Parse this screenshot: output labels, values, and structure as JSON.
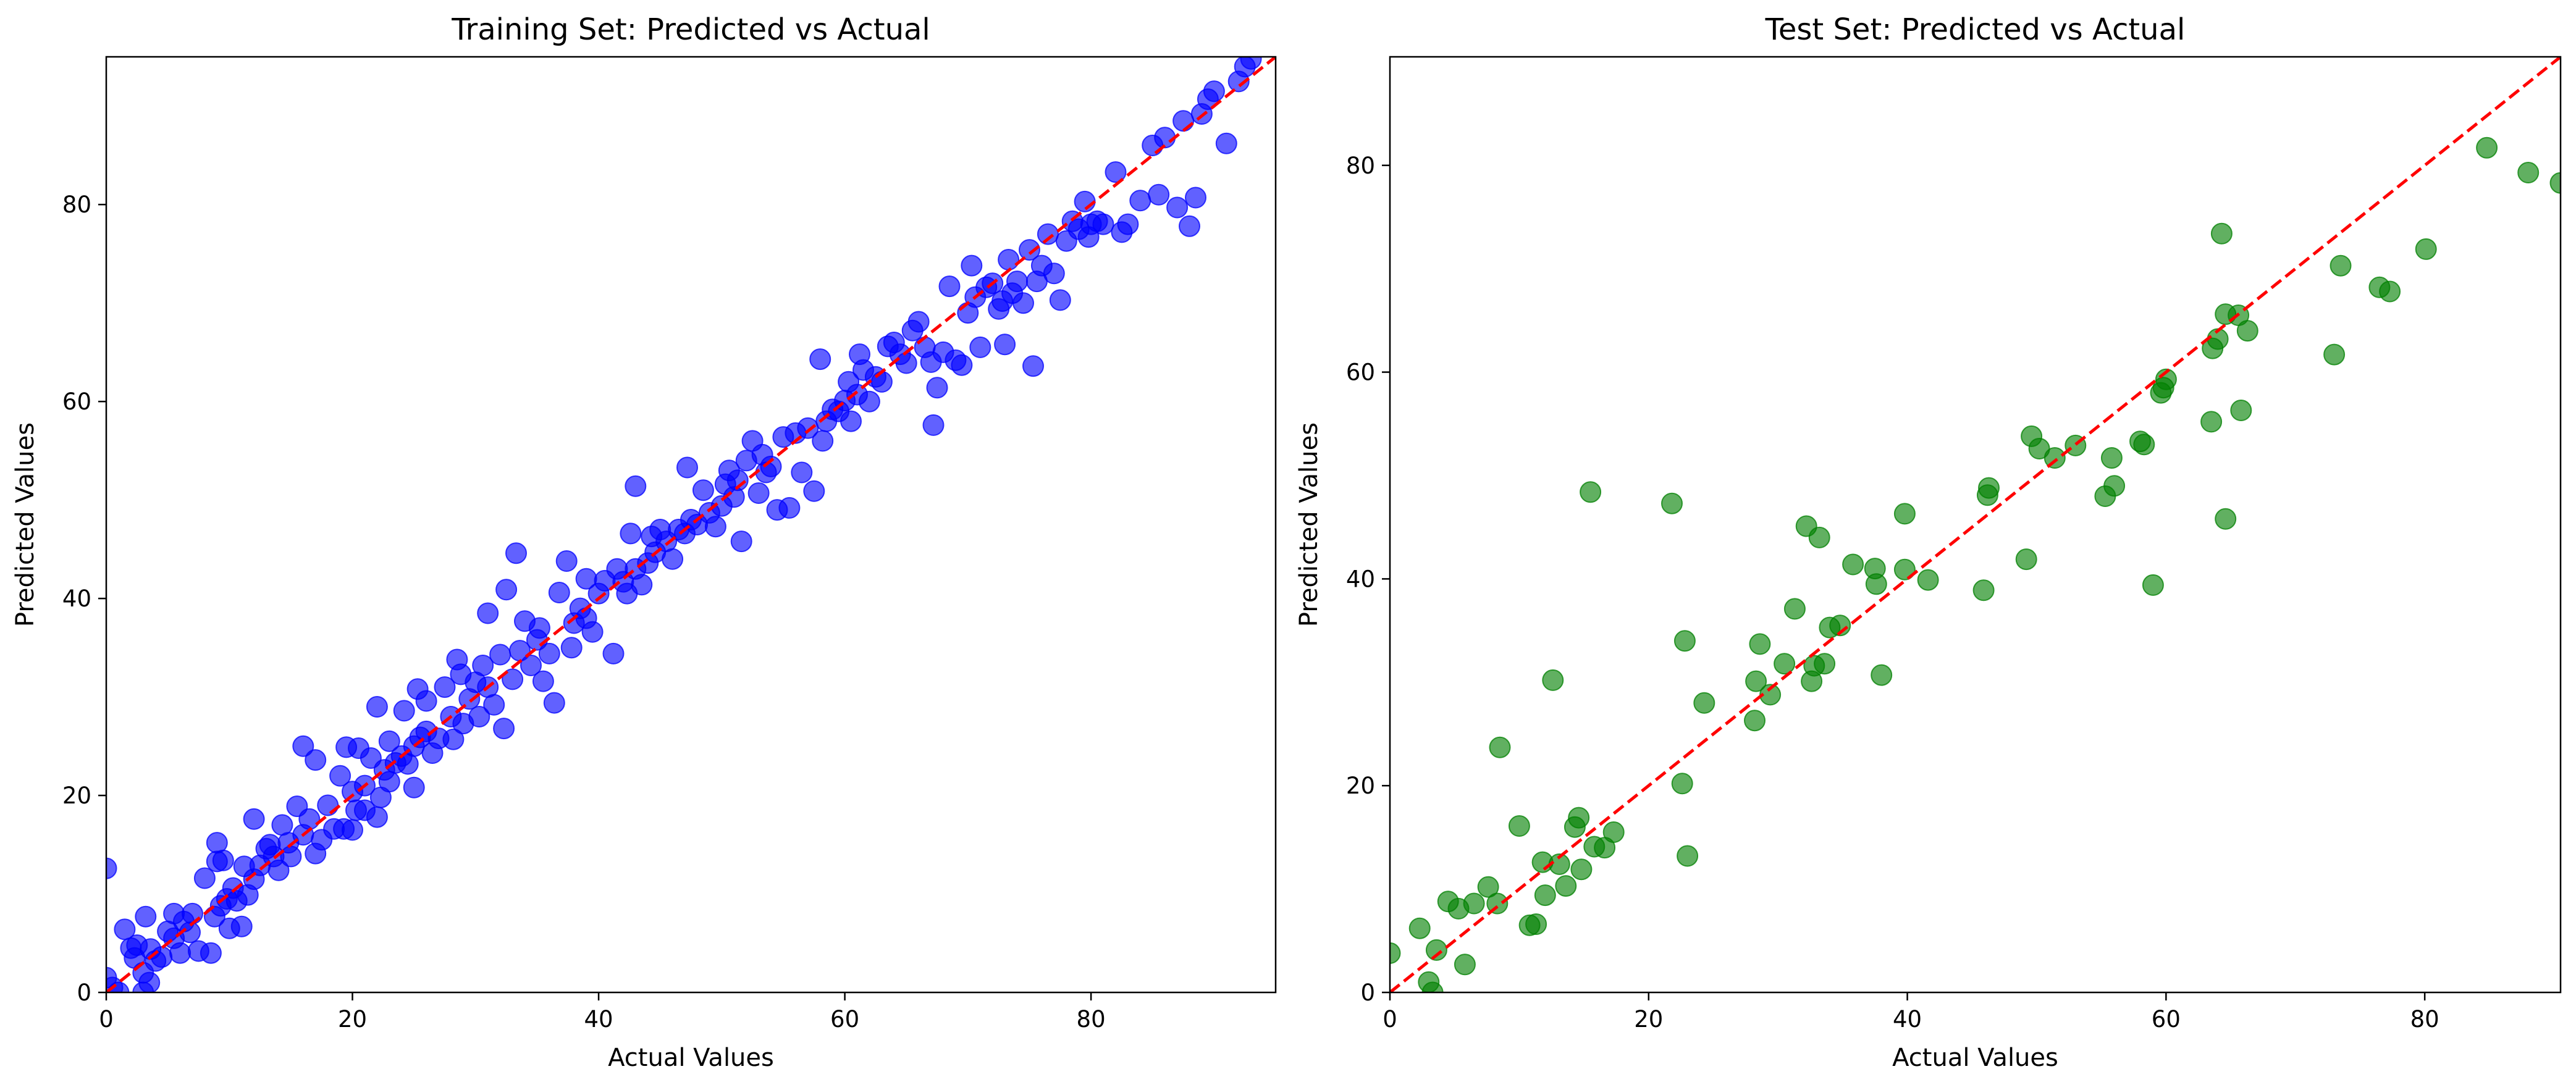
{
  "chart_data": [
    {
      "type": "scatter",
      "title": "Training Set: Predicted vs Actual",
      "xlabel": "Actual Values",
      "ylabel": "Predicted Values",
      "xlim": [
        0,
        95
      ],
      "ylim": [
        0,
        95
      ],
      "xticks": [
        0,
        20,
        40,
        60,
        80
      ],
      "yticks": [
        0,
        20,
        40,
        60,
        80
      ],
      "grid": false,
      "point_color": "#0000ff",
      "reference_line": {
        "from": [
          0,
          0
        ],
        "to": [
          95,
          95
        ],
        "color": "#ff0000",
        "style": "dashed"
      },
      "points": [
        [
          0,
          12.6
        ],
        [
          0,
          1.5
        ],
        [
          0.5,
          0.5
        ],
        [
          1,
          0
        ],
        [
          1.5,
          6.4
        ],
        [
          2,
          4.5
        ],
        [
          2.3,
          3.5
        ],
        [
          2.5,
          4.8
        ],
        [
          3,
          0
        ],
        [
          3,
          2
        ],
        [
          3.2,
          7.7
        ],
        [
          3.5,
          1
        ],
        [
          3.6,
          4.4
        ],
        [
          4,
          3.2
        ],
        [
          4.5,
          3.6
        ],
        [
          5,
          6.2
        ],
        [
          5.5,
          5.5
        ],
        [
          5.5,
          8
        ],
        [
          6,
          4
        ],
        [
          6.3,
          7.2
        ],
        [
          6.8,
          6.1
        ],
        [
          7,
          8
        ],
        [
          7.5,
          4.2
        ],
        [
          8,
          11.6
        ],
        [
          8.5,
          4
        ],
        [
          8.8,
          7.7
        ],
        [
          9,
          15.2
        ],
        [
          9,
          13.3
        ],
        [
          9.3,
          8.8
        ],
        [
          9.5,
          13.4
        ],
        [
          9.8,
          9.5
        ],
        [
          10,
          6.5
        ],
        [
          10.3,
          10.6
        ],
        [
          10.6,
          9.3
        ],
        [
          11,
          6.7
        ],
        [
          11.2,
          12.8
        ],
        [
          11.5,
          9.9
        ],
        [
          12,
          17.6
        ],
        [
          12,
          11.5
        ],
        [
          12.5,
          12.9
        ],
        [
          13,
          14.6
        ],
        [
          13.3,
          15
        ],
        [
          13.6,
          13.8
        ],
        [
          14,
          12.4
        ],
        [
          14.3,
          17
        ],
        [
          14.8,
          15.2
        ],
        [
          15,
          13.8
        ],
        [
          15.5,
          18.9
        ],
        [
          16,
          16
        ],
        [
          16,
          25
        ],
        [
          16.5,
          17.6
        ],
        [
          17,
          14.1
        ],
        [
          17,
          23.6
        ],
        [
          17.5,
          15.5
        ],
        [
          18,
          19
        ],
        [
          18.5,
          16.6
        ],
        [
          19,
          22
        ],
        [
          19.3,
          16.6
        ],
        [
          19.5,
          24.9
        ],
        [
          20,
          16.5
        ],
        [
          20,
          20.4
        ],
        [
          20.3,
          18.5
        ],
        [
          20.5,
          24.8
        ],
        [
          21,
          21
        ],
        [
          21,
          18.5
        ],
        [
          21.5,
          23.8
        ],
        [
          22,
          17.8
        ],
        [
          22,
          29
        ],
        [
          22.3,
          19.8
        ],
        [
          22.6,
          22.6
        ],
        [
          23,
          21.4
        ],
        [
          23,
          25.5
        ],
        [
          23.5,
          23.3
        ],
        [
          24,
          24
        ],
        [
          24.2,
          28.6
        ],
        [
          24.5,
          23.2
        ],
        [
          25,
          20.8
        ],
        [
          25,
          25
        ],
        [
          25.3,
          30.8
        ],
        [
          25.5,
          25.9
        ],
        [
          26,
          26.5
        ],
        [
          26,
          29.6
        ],
        [
          26.5,
          24.3
        ],
        [
          27,
          25.8
        ],
        [
          27.5,
          31
        ],
        [
          28,
          28
        ],
        [
          28.2,
          25.7
        ],
        [
          28.5,
          33.8
        ],
        [
          28.8,
          32.3
        ],
        [
          29,
          27.3
        ],
        [
          29.5,
          29.8
        ],
        [
          30,
          31.5
        ],
        [
          30.3,
          28
        ],
        [
          30.6,
          33.2
        ],
        [
          31,
          31
        ],
        [
          31,
          38.5
        ],
        [
          31.5,
          29.2
        ],
        [
          32,
          34.3
        ],
        [
          32.3,
          26.8
        ],
        [
          32.5,
          40.9
        ],
        [
          33,
          31.8
        ],
        [
          33.3,
          44.6
        ],
        [
          33.6,
          34.7
        ],
        [
          34,
          37.7
        ],
        [
          34.5,
          33.2
        ],
        [
          35,
          35.8
        ],
        [
          35.2,
          37
        ],
        [
          35.5,
          31.6
        ],
        [
          36,
          34.4
        ],
        [
          36.4,
          29.4
        ],
        [
          36.8,
          40.6
        ],
        [
          37.4,
          43.8
        ],
        [
          37.8,
          35
        ],
        [
          38,
          37.5
        ],
        [
          38.5,
          39
        ],
        [
          39,
          38
        ],
        [
          39,
          42
        ],
        [
          39.5,
          36.6
        ],
        [
          40,
          40.5
        ],
        [
          40.5,
          41.8
        ],
        [
          41.2,
          34.4
        ],
        [
          41.5,
          43
        ],
        [
          42,
          41.7
        ],
        [
          42.3,
          40.5
        ],
        [
          42.6,
          46.6
        ],
        [
          43,
          51.4
        ],
        [
          43,
          43
        ],
        [
          43.5,
          41.4
        ],
        [
          44,
          43.6
        ],
        [
          44.3,
          46.3
        ],
        [
          44.6,
          44.7
        ],
        [
          45,
          47
        ],
        [
          45.5,
          45.8
        ],
        [
          46,
          44
        ],
        [
          46.5,
          47
        ],
        [
          47,
          46.6
        ],
        [
          47.2,
          53.3
        ],
        [
          47.5,
          48
        ],
        [
          48,
          47.5
        ],
        [
          48.5,
          51
        ],
        [
          49,
          48.7
        ],
        [
          49.5,
          47.3
        ],
        [
          50,
          49.4
        ],
        [
          50.3,
          51.6
        ],
        [
          50.6,
          53
        ],
        [
          51,
          50.3
        ],
        [
          51.3,
          52
        ],
        [
          51.6,
          45.8
        ],
        [
          52,
          54
        ],
        [
          52.5,
          56
        ],
        [
          53,
          50.7
        ],
        [
          53.3,
          54.6
        ],
        [
          53.6,
          52.8
        ],
        [
          54,
          53.4
        ],
        [
          54.5,
          49
        ],
        [
          55,
          56.4
        ],
        [
          55.5,
          49.2
        ],
        [
          56,
          56.8
        ],
        [
          56.5,
          52.8
        ],
        [
          57,
          57.3
        ],
        [
          57.5,
          50.9
        ],
        [
          58,
          64.3
        ],
        [
          58.2,
          56
        ],
        [
          58.5,
          58
        ],
        [
          59,
          59.2
        ],
        [
          59.5,
          59
        ],
        [
          60,
          60.1
        ],
        [
          60.3,
          62
        ],
        [
          60.5,
          58
        ],
        [
          61,
          60.7
        ],
        [
          61.2,
          64.8
        ],
        [
          61.5,
          63.2
        ],
        [
          62,
          60
        ],
        [
          62.5,
          62.5
        ],
        [
          63,
          62
        ],
        [
          63.5,
          65.6
        ],
        [
          64,
          66
        ],
        [
          64.5,
          64.8
        ],
        [
          65,
          63.9
        ],
        [
          65.5,
          67.2
        ],
        [
          66,
          68.1
        ],
        [
          66.5,
          65.5
        ],
        [
          67,
          64
        ],
        [
          67.2,
          57.6
        ],
        [
          67.5,
          61.4
        ],
        [
          68,
          65
        ],
        [
          68.5,
          71.7
        ],
        [
          69,
          64.2
        ],
        [
          69.5,
          63.7
        ],
        [
          70,
          69
        ],
        [
          70.3,
          73.8
        ],
        [
          70.6,
          70.6
        ],
        [
          71,
          65.5
        ],
        [
          71.5,
          71.6
        ],
        [
          72,
          72
        ],
        [
          72.5,
          69.4
        ],
        [
          72.8,
          70.2
        ],
        [
          73,
          65.8
        ],
        [
          73.3,
          74.4
        ],
        [
          73.6,
          71
        ],
        [
          74,
          72.2
        ],
        [
          74.5,
          70
        ],
        [
          75,
          75.4
        ],
        [
          75.3,
          63.6
        ],
        [
          75.6,
          72.2
        ],
        [
          76,
          73.8
        ],
        [
          76.5,
          77
        ],
        [
          77,
          73
        ],
        [
          77.5,
          70.3
        ],
        [
          78,
          76.3
        ],
        [
          78.5,
          78.3
        ],
        [
          79,
          77.5
        ],
        [
          79.5,
          80.3
        ],
        [
          79.8,
          76.7
        ],
        [
          80,
          78
        ],
        [
          80.5,
          78.3
        ],
        [
          81,
          78
        ],
        [
          82,
          83.3
        ],
        [
          82.5,
          77.2
        ],
        [
          83,
          78
        ],
        [
          84,
          80.4
        ],
        [
          85,
          86
        ],
        [
          85.5,
          81
        ],
        [
          86,
          86.8
        ],
        [
          87,
          79.7
        ],
        [
          87.5,
          88.5
        ],
        [
          88,
          77.8
        ],
        [
          88.5,
          80.7
        ],
        [
          89,
          89.2
        ],
        [
          89.5,
          90.7
        ],
        [
          90,
          91.5
        ],
        [
          91,
          86.2
        ],
        [
          92,
          92.5
        ],
        [
          92.5,
          94
        ],
        [
          93,
          94.8
        ]
      ]
    },
    {
      "type": "scatter",
      "title": "Test Set: Predicted vs Actual",
      "xlabel": "Actual Values",
      "ylabel": "Predicted Values",
      "xlim": [
        0,
        90.5
      ],
      "ylim": [
        0,
        90.5
      ],
      "xticks": [
        0,
        20,
        40,
        60,
        80
      ],
      "yticks": [
        0,
        20,
        40,
        60,
        80
      ],
      "grid": false,
      "point_color": "#008000",
      "reference_line": {
        "from": [
          0,
          0
        ],
        "to": [
          90.5,
          90.5
        ],
        "color": "#ff0000",
        "style": "dashed"
      },
      "points": [
        [
          0,
          3.8
        ],
        [
          2.3,
          6.2
        ],
        [
          3,
          1
        ],
        [
          3.3,
          0
        ],
        [
          3.6,
          4.1
        ],
        [
          4.5,
          8.8
        ],
        [
          5.3,
          8.1
        ],
        [
          5.8,
          2.7
        ],
        [
          6.5,
          8.6
        ],
        [
          7.6,
          10.2
        ],
        [
          8.3,
          8.6
        ],
        [
          8.5,
          23.7
        ],
        [
          10,
          16.1
        ],
        [
          10.8,
          6.5
        ],
        [
          11.3,
          6.6
        ],
        [
          11.8,
          12.6
        ],
        [
          12,
          9.4
        ],
        [
          12.6,
          30.2
        ],
        [
          13.1,
          12.4
        ],
        [
          13.6,
          10.3
        ],
        [
          14.3,
          16
        ],
        [
          14.6,
          16.9
        ],
        [
          14.8,
          11.9
        ],
        [
          15.5,
          48.4
        ],
        [
          15.8,
          14.1
        ],
        [
          16.6,
          14
        ],
        [
          17.3,
          15.5
        ],
        [
          21.8,
          47.3
        ],
        [
          22.6,
          20.2
        ],
        [
          22.8,
          34
        ],
        [
          23,
          13.2
        ],
        [
          24.3,
          28
        ],
        [
          28.2,
          26.3
        ],
        [
          28.3,
          30.1
        ],
        [
          28.6,
          33.7
        ],
        [
          29.4,
          28.8
        ],
        [
          30.5,
          31.8
        ],
        [
          31.3,
          37.1
        ],
        [
          32.2,
          45.1
        ],
        [
          32.6,
          30.1
        ],
        [
          32.8,
          31.6
        ],
        [
          33.2,
          44
        ],
        [
          33.6,
          31.8
        ],
        [
          34,
          35.3
        ],
        [
          34.8,
          35.5
        ],
        [
          35.8,
          41.4
        ],
        [
          37.5,
          41
        ],
        [
          37.6,
          39.5
        ],
        [
          38,
          30.7
        ],
        [
          39.8,
          46.3
        ],
        [
          39.8,
          40.9
        ],
        [
          41.6,
          39.9
        ],
        [
          45.9,
          38.9
        ],
        [
          46.2,
          48.1
        ],
        [
          46.3,
          48.8
        ],
        [
          49.2,
          41.9
        ],
        [
          49.6,
          53.8
        ],
        [
          50.2,
          52.6
        ],
        [
          51.4,
          51.7
        ],
        [
          53,
          52.9
        ],
        [
          55.3,
          48
        ],
        [
          55.8,
          51.7
        ],
        [
          56,
          49
        ],
        [
          58,
          53.3
        ],
        [
          58.3,
          53
        ],
        [
          59,
          39.4
        ],
        [
          59.6,
          58
        ],
        [
          59.8,
          58.5
        ],
        [
          60,
          59.3
        ],
        [
          63.5,
          55.2
        ],
        [
          63.6,
          62.3
        ],
        [
          64,
          63.2
        ],
        [
          64.3,
          73.4
        ],
        [
          64.6,
          65.6
        ],
        [
          64.6,
          45.8
        ],
        [
          65.6,
          65.5
        ],
        [
          65.8,
          56.3
        ],
        [
          66.3,
          64
        ],
        [
          73,
          61.7
        ],
        [
          73.5,
          70.3
        ],
        [
          76.5,
          68.2
        ],
        [
          77.3,
          67.8
        ],
        [
          80.1,
          71.9
        ],
        [
          84.8,
          81.7
        ],
        [
          88,
          79.3
        ],
        [
          90.5,
          78.3
        ]
      ]
    }
  ]
}
